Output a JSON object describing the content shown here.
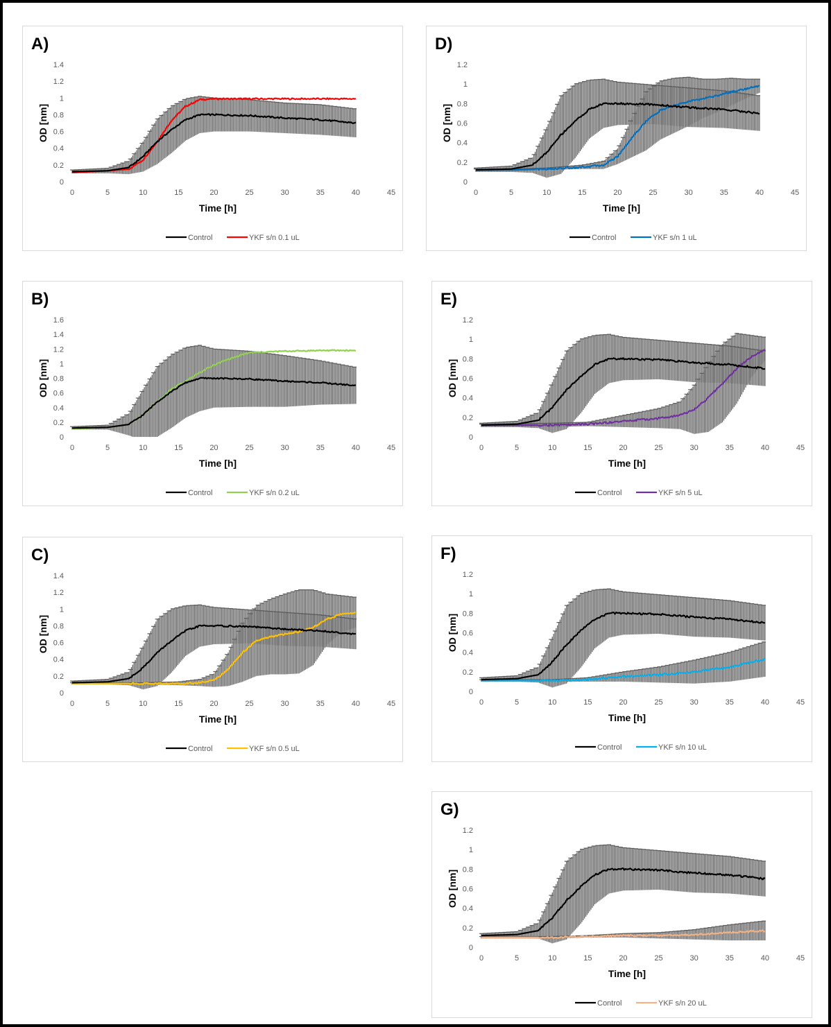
{
  "chart_data": [
    {
      "type": "line",
      "panel": "A)",
      "xlabel": "Time [h]",
      "ylabel": "OD [nm]",
      "xlim": [
        0,
        45
      ],
      "ylim": [
        0,
        1.4
      ],
      "xticks": [
        "0",
        "5",
        "10",
        "15",
        "20",
        "25",
        "30",
        "35",
        "40",
        "45"
      ],
      "yticks": [
        "0",
        "0.2",
        "0.4",
        "0.6",
        "0.8",
        "1",
        "1.2",
        "1.4"
      ],
      "error_bars": "control-sd",
      "series": [
        {
          "name": "Control",
          "color": "#000000",
          "x": [
            0,
            5,
            8,
            10,
            12,
            14,
            16,
            18,
            20,
            25,
            30,
            35,
            40
          ],
          "y": [
            0.12,
            0.13,
            0.17,
            0.3,
            0.48,
            0.62,
            0.74,
            0.8,
            0.8,
            0.79,
            0.76,
            0.74,
            0.7
          ],
          "err": [
            0.02,
            0.03,
            0.08,
            0.18,
            0.27,
            0.28,
            0.25,
            0.22,
            0.2,
            0.19,
            0.18,
            0.18,
            0.17
          ]
        },
        {
          "name": "YKF s/n 0.1 uL",
          "color": "#ff0000",
          "x": [
            0,
            5,
            8,
            10,
            12,
            14,
            16,
            18,
            20,
            25,
            30,
            35,
            40
          ],
          "y": [
            0.11,
            0.13,
            0.15,
            0.26,
            0.48,
            0.73,
            0.9,
            0.98,
            0.99,
            0.99,
            0.99,
            0.99,
            0.99
          ]
        }
      ]
    },
    {
      "type": "line",
      "panel": "B)",
      "xlabel": "Time [h]",
      "ylabel": "OD [nm]",
      "xlim": [
        0,
        45
      ],
      "ylim": [
        0,
        1.6
      ],
      "xticks": [
        "0",
        "5",
        "10",
        "15",
        "20",
        "25",
        "30",
        "35",
        "40",
        "45"
      ],
      "yticks": [
        "0",
        "0.2",
        "0.4",
        "0.6",
        "0.8",
        "1",
        "1.2",
        "1.4",
        "1.6"
      ],
      "error_bars": "control-sd",
      "series": [
        {
          "name": "Control",
          "color": "#000000",
          "x": [
            0,
            5,
            8,
            10,
            12,
            14,
            16,
            18,
            20,
            25,
            30,
            35,
            40
          ],
          "y": [
            0.12,
            0.13,
            0.17,
            0.3,
            0.48,
            0.62,
            0.74,
            0.8,
            0.8,
            0.79,
            0.76,
            0.74,
            0.7
          ],
          "err": [
            0.02,
            0.03,
            0.15,
            0.35,
            0.48,
            0.5,
            0.48,
            0.45,
            0.4,
            0.38,
            0.35,
            0.3,
            0.25
          ]
        },
        {
          "name": "YKF s/n 0.2 uL",
          "color": "#92d050",
          "x": [
            0,
            5,
            8,
            10,
            12,
            14,
            16,
            18,
            20,
            22,
            25,
            30,
            35,
            40
          ],
          "y": [
            0.11,
            0.13,
            0.17,
            0.3,
            0.48,
            0.65,
            0.76,
            0.88,
            0.98,
            1.06,
            1.15,
            1.17,
            1.18,
            1.18
          ]
        }
      ]
    },
    {
      "type": "line",
      "panel": "C)",
      "xlabel": "Time [h]",
      "ylabel": "OD [nm]",
      "xlim": [
        0,
        45
      ],
      "ylim": [
        0,
        1.4
      ],
      "xticks": [
        "0",
        "5",
        "10",
        "15",
        "20",
        "25",
        "30",
        "35",
        "40",
        "45"
      ],
      "yticks": [
        "0",
        "0.2",
        "0.4",
        "0.6",
        "0.8",
        "1",
        "1.2",
        "1.4"
      ],
      "error_bars": "both-sd",
      "series": [
        {
          "name": "Control",
          "color": "#000000",
          "x": [
            0,
            5,
            8,
            10,
            12,
            14,
            16,
            18,
            20,
            25,
            30,
            35,
            40
          ],
          "y": [
            0.12,
            0.13,
            0.17,
            0.3,
            0.48,
            0.62,
            0.74,
            0.8,
            0.8,
            0.79,
            0.76,
            0.74,
            0.7
          ],
          "err": [
            0.02,
            0.03,
            0.08,
            0.26,
            0.4,
            0.38,
            0.3,
            0.25,
            0.22,
            0.2,
            0.2,
            0.19,
            0.18
          ]
        },
        {
          "name": "YKF s/n 0.5 uL",
          "color": "#ffc000",
          "x": [
            0,
            5,
            10,
            15,
            18,
            20,
            22,
            24,
            26,
            28,
            30,
            32,
            34,
            36,
            38,
            40
          ],
          "y": [
            0.11,
            0.11,
            0.11,
            0.11,
            0.12,
            0.15,
            0.28,
            0.48,
            0.62,
            0.67,
            0.7,
            0.73,
            0.78,
            0.88,
            0.94,
            0.96
          ],
          "err": [
            0.01,
            0.01,
            0.01,
            0.02,
            0.04,
            0.08,
            0.2,
            0.35,
            0.42,
            0.45,
            0.48,
            0.5,
            0.45,
            0.3,
            0.22,
            0.18
          ]
        }
      ]
    },
    {
      "type": "line",
      "panel": "D)",
      "xlabel": "Time [h]",
      "ylabel": "OD [nm]",
      "xlim": [
        0,
        45
      ],
      "ylim": [
        0,
        1.2
      ],
      "xticks": [
        "0",
        "5",
        "10",
        "15",
        "20",
        "25",
        "30",
        "35",
        "40",
        "45"
      ],
      "yticks": [
        "0",
        "0.2",
        "0.4",
        "0.6",
        "0.8",
        "1",
        "1.2"
      ],
      "error_bars": "both-sd",
      "series": [
        {
          "name": "Control",
          "color": "#000000",
          "x": [
            0,
            5,
            8,
            10,
            12,
            14,
            16,
            18,
            20,
            25,
            30,
            35,
            40
          ],
          "y": [
            0.12,
            0.13,
            0.17,
            0.3,
            0.48,
            0.62,
            0.74,
            0.8,
            0.8,
            0.79,
            0.76,
            0.74,
            0.7
          ],
          "err": [
            0.02,
            0.03,
            0.08,
            0.26,
            0.4,
            0.38,
            0.3,
            0.25,
            0.22,
            0.2,
            0.2,
            0.19,
            0.18
          ]
        },
        {
          "name": "YKF s/n 1 uL",
          "color": "#0070c0",
          "x": [
            0,
            5,
            10,
            15,
            18,
            20,
            22,
            24,
            26,
            28,
            30,
            32,
            34,
            36,
            38,
            40
          ],
          "y": [
            0.12,
            0.12,
            0.13,
            0.15,
            0.17,
            0.26,
            0.45,
            0.62,
            0.73,
            0.78,
            0.82,
            0.85,
            0.88,
            0.92,
            0.95,
            0.98
          ],
          "err": [
            0.01,
            0.01,
            0.01,
            0.02,
            0.04,
            0.08,
            0.2,
            0.3,
            0.3,
            0.28,
            0.25,
            0.2,
            0.17,
            0.14,
            0.1,
            0.07
          ]
        }
      ]
    },
    {
      "type": "line",
      "panel": "E)",
      "xlabel": "Time [h]",
      "ylabel": "OD [nm]",
      "xlim": [
        0,
        45
      ],
      "ylim": [
        0,
        1.2
      ],
      "xticks": [
        "0",
        "5",
        "10",
        "15",
        "20",
        "25",
        "30",
        "35",
        "40",
        "45"
      ],
      "yticks": [
        "0",
        "0.2",
        "0.4",
        "0.6",
        "0.8",
        "1",
        "1.2"
      ],
      "error_bars": "both-sd",
      "series": [
        {
          "name": "Control",
          "color": "#000000",
          "x": [
            0,
            5,
            8,
            10,
            12,
            14,
            16,
            18,
            20,
            25,
            30,
            35,
            40
          ],
          "y": [
            0.12,
            0.13,
            0.17,
            0.3,
            0.48,
            0.62,
            0.74,
            0.8,
            0.8,
            0.79,
            0.76,
            0.74,
            0.7
          ],
          "err": [
            0.02,
            0.03,
            0.08,
            0.26,
            0.4,
            0.38,
            0.3,
            0.25,
            0.22,
            0.2,
            0.2,
            0.19,
            0.18
          ]
        },
        {
          "name": "YKF s/n 5 uL",
          "color": "#7030a0",
          "x": [
            0,
            10,
            15,
            20,
            25,
            28,
            30,
            32,
            34,
            36,
            38,
            40
          ],
          "y": [
            0.12,
            0.12,
            0.13,
            0.16,
            0.19,
            0.22,
            0.28,
            0.4,
            0.55,
            0.7,
            0.82,
            0.9
          ],
          "err": [
            0.01,
            0.02,
            0.02,
            0.06,
            0.1,
            0.14,
            0.25,
            0.35,
            0.4,
            0.36,
            0.22,
            0.12
          ]
        }
      ]
    },
    {
      "type": "line",
      "panel": "F)",
      "xlabel": "Time [h]",
      "ylabel": "OD [nm]",
      "xlim": [
        0,
        45
      ],
      "ylim": [
        0,
        1.2
      ],
      "xticks": [
        "0",
        "5",
        "10",
        "15",
        "20",
        "25",
        "30",
        "35",
        "40",
        "45"
      ],
      "yticks": [
        "0",
        "0.2",
        "0.4",
        "0.6",
        "0.8",
        "1",
        "1.2"
      ],
      "error_bars": "both-sd",
      "series": [
        {
          "name": "Control",
          "color": "#000000",
          "x": [
            0,
            5,
            8,
            10,
            12,
            14,
            16,
            18,
            20,
            25,
            30,
            35,
            40
          ],
          "y": [
            0.12,
            0.13,
            0.17,
            0.3,
            0.48,
            0.62,
            0.74,
            0.8,
            0.8,
            0.79,
            0.76,
            0.74,
            0.7
          ],
          "err": [
            0.02,
            0.03,
            0.08,
            0.26,
            0.4,
            0.38,
            0.3,
            0.25,
            0.22,
            0.2,
            0.2,
            0.19,
            0.18
          ]
        },
        {
          "name": "YKF s/n 10 uL",
          "color": "#00b0f0",
          "x": [
            0,
            10,
            15,
            20,
            25,
            30,
            35,
            40
          ],
          "y": [
            0.11,
            0.11,
            0.12,
            0.15,
            0.17,
            0.2,
            0.25,
            0.33
          ],
          "err": [
            0.01,
            0.01,
            0.02,
            0.05,
            0.08,
            0.12,
            0.15,
            0.18
          ]
        }
      ]
    },
    {
      "type": "line",
      "panel": "G)",
      "xlabel": "Time [h]",
      "ylabel": "OD [nm]",
      "xlim": [
        0,
        45
      ],
      "ylim": [
        0,
        1.2
      ],
      "xticks": [
        "0",
        "5",
        "10",
        "15",
        "20",
        "25",
        "30",
        "35",
        "40",
        "45"
      ],
      "yticks": [
        "0",
        "0.2",
        "0.4",
        "0.6",
        "0.8",
        "1",
        "1.2"
      ],
      "error_bars": "both-sd",
      "series": [
        {
          "name": "Control",
          "color": "#000000",
          "x": [
            0,
            5,
            8,
            10,
            12,
            14,
            16,
            18,
            20,
            25,
            30,
            35,
            40
          ],
          "y": [
            0.12,
            0.13,
            0.17,
            0.3,
            0.48,
            0.62,
            0.74,
            0.8,
            0.8,
            0.79,
            0.76,
            0.74,
            0.7
          ],
          "err": [
            0.02,
            0.03,
            0.08,
            0.26,
            0.4,
            0.38,
            0.3,
            0.25,
            0.22,
            0.2,
            0.2,
            0.19,
            0.18
          ]
        },
        {
          "name": "YKF s/n 20 uL",
          "color": "#f4b183",
          "x": [
            0,
            10,
            15,
            20,
            25,
            30,
            35,
            40
          ],
          "y": [
            0.1,
            0.1,
            0.11,
            0.12,
            0.12,
            0.13,
            0.15,
            0.17
          ],
          "err": [
            0.01,
            0.01,
            0.01,
            0.02,
            0.03,
            0.05,
            0.08,
            0.1
          ]
        }
      ]
    }
  ]
}
